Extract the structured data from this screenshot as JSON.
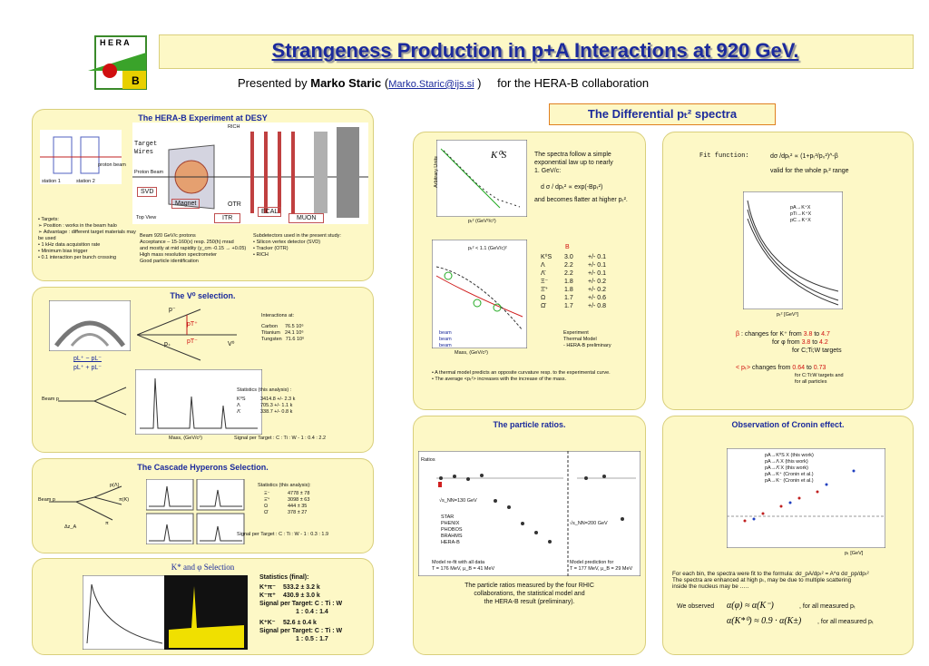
{
  "header": {
    "logo_top": "H E R A",
    "logo_bottom": "B",
    "title": "Strangeness Production in p+A Interactions at 920 GeV.",
    "presented_by": "Presented by",
    "author": "Marko Staric",
    "open_paren": "(",
    "email": "Marko.Staric@ijs.si",
    "close_paren": ")",
    "collaboration": "for the HERA-B collaboration"
  },
  "experiment": {
    "title": "The HERA-B Experiment at DESY",
    "labels": [
      "RICH",
      "Target Wires",
      "Proton Beam",
      "SVD",
      "Magnet",
      "OTR",
      "ECAL",
      "ITR",
      "MUON",
      "Top View"
    ],
    "station_labels": [
      "station 1",
      "station 2",
      "proton beam"
    ],
    "targets": [
      "• Targets:",
      "➢ Position : works in the beam halo",
      "➢ Advantage : different target materials may be used",
      "• 1 kHz data acquisition rate",
      "• Minimum bias trigger",
      "• 0.1 interaction per bunch crossing"
    ],
    "beam": [
      "Beam 920 GeV/c protons",
      "Acceptance – 15-160(x) resp. 250(h) mrad",
      "and mostly at mid rapidity (y_cm -0.15 → +0.05)",
      "High mass resolution spectrometer",
      "Good particle identification"
    ],
    "subdetectors": [
      "Subdetectors used in the present study:",
      "• Silicon vertex detector (SVD)",
      "• Tracker (OTR)",
      "• RICH"
    ]
  },
  "v0": {
    "title": "The V⁰ selection.",
    "diagram_labels": [
      "p⁻",
      "p₊",
      "pT⁺",
      "pT⁻",
      "V⁰"
    ],
    "formula_top": "pL⁺ − pL⁻",
    "formula_bottom": "pL⁺ + pL⁻",
    "beam_label": "Beam p",
    "interactions_title": "Interactions at:",
    "interactions": [
      [
        "Carbon",
        "76.5 10⁶"
      ],
      [
        "Titanium",
        "24.1 10⁶"
      ],
      [
        "Tungsten",
        "71.6 10⁶"
      ]
    ],
    "stats_title": "Statistics (this analysis) :",
    "stats": [
      [
        "K⁰S",
        "3414.8 +/- 2.3 k"
      ],
      [
        "Λ",
        "705.3 +/- 1.1 k"
      ],
      [
        "Λ̄",
        "338.7 +/- 0.8 k"
      ]
    ],
    "signal": "Signal per Target : C : Ti : W - 1 : 0.4 : 2.2",
    "mass_label": "Mass, (GeV/c²)"
  },
  "cascade": {
    "title": "The Cascade Hyperons Selection.",
    "diagram_labels": [
      "p(Λ)",
      "π(K)",
      "Beam p",
      "π",
      "Δz_A"
    ],
    "stats_title": "Statistics (this analysis):",
    "stats": [
      [
        "Ξ⁻",
        "4778 ± 78"
      ],
      [
        "Ξ̄⁺",
        "3098 ± 63"
      ],
      [
        "Ω",
        "444 ± 35"
      ],
      [
        "Ω̄",
        "378 ± 27"
      ]
    ],
    "signal": "Signal per Target : C : Ti : W - 1 : 0.3 : 1.9"
  },
  "kstar": {
    "title": "K* and φ Selection",
    "stats_title": "Statistics (final):",
    "stats": [
      [
        "K⁺π⁻",
        "533.2 ± 3.2 k"
      ],
      [
        "K⁻π⁺",
        "430.9 ± 3.0 k"
      ]
    ],
    "signal1": "Signal per Target: C : Ti : W",
    "ratio1": "1 : 0.4 : 1.4",
    "stats2": [
      [
        "K⁺K⁻",
        "52.6 ± 0.4 k"
      ]
    ],
    "signal2": "Signal per Target: C : Ti : W",
    "ratio2": "1 : 0.5 : 1.7"
  },
  "spectra": {
    "header": "The Differential pₜ² spectra",
    "plot_label": "K⁰S",
    "y_label": "Arbitrary Units",
    "x_label": "pₜ² (GeV²/c²)",
    "text": [
      "The spectra follow a simple",
      "exponential law up to nearly",
      "1. GeV/c:"
    ],
    "formula": "d σ / dpₜ² ∝ exp(-Bpₜ²)",
    "text2": "and becomes flatter at higher pₜ².",
    "plot2_note": "pₜ² < 1.1 (GeV/c)²",
    "plot2_x": "Mass, (GeV/c²)",
    "plot2_legend": [
      "beam",
      "beam",
      "beam"
    ],
    "b_header": "B",
    "b_table": [
      [
        "K⁰S",
        "3.0",
        "+/- 0.1"
      ],
      [
        "Λ",
        "2.2",
        "+/- 0.1"
      ],
      [
        "Λ̄",
        "2.2",
        "+/- 0.1"
      ],
      [
        "Ξ⁻",
        "1.8",
        "+/- 0.2"
      ],
      [
        "Ξ̄⁺",
        "1.8",
        "+/- 0.2"
      ],
      [
        "Ω",
        "1.7",
        "+/- 0.6"
      ],
      [
        "Ω̄",
        "1.7",
        "+/- 0.8"
      ]
    ],
    "legend": [
      "Experiment",
      "Thermal Model",
      "- HERA-B preliminary"
    ],
    "bullets": [
      "• A thermal model predicts an opposite curvature resp. to the experimental curve.",
      "• The average <pₜ²> increases with the increase of the mass."
    ]
  },
  "fit": {
    "fit_label": "Fit function:",
    "fit_formula": "dσ /dpₜ² ∝ (1+pₜ²/p₀²)^-β",
    "valid": "valid for the whole pₜ² range",
    "plot_legend": [
      "pA→K⁺X",
      "pTi→K⁺X",
      "pC→K⁺X"
    ],
    "x_label": "pₜ² [GeV²]",
    "beta_symbol": "β",
    "beta_lines": [
      ": changes for K⁺ from",
      "for φ from",
      "for C;Ti;W targets"
    ],
    "beta_from": [
      "3.8",
      "3.8"
    ],
    "beta_to": [
      "4.7",
      "4.2"
    ],
    "to": "to",
    "pt_symbol": "< pₜ>",
    "pt_line": "changes from",
    "pt_from": "0.64",
    "pt_to": "0.73",
    "pt_lines": [
      "for C:Ti:W targets and",
      "for all particles"
    ]
  },
  "ratios": {
    "title": "The particle ratios.",
    "y_label": "Ratios",
    "energy1": "√s_NN=130 GeV",
    "energy2": "√s_NN=200 GeV",
    "legend": [
      "STAR",
      "PHENIX",
      "PHOBOS",
      "BRAHMS",
      "HERA-B"
    ],
    "model1": "Model re-fit with all data",
    "model1b": "T = 176 MeV, μ_B = 41 MeV",
    "model2": "Model prediction for",
    "model2b": "T = 177 MeV, μ_B = 29 MeV",
    "caption": [
      "The particle ratios measured by the four RHIC",
      "collaborations, the statistical model and",
      "the HERA-B result (preliminary)."
    ]
  },
  "cronin": {
    "title": "Observation of Cronin effect.",
    "legend": [
      "pA→K⁰S X (this work)",
      "pA→Λ X (this work)",
      "pA→Λ̄ X (this work)",
      "pA→K⁺ (Cronin et al.)",
      "pA→K⁻ (Cronin et al.)"
    ],
    "x_label": "pₜ [GeV]",
    "text": [
      "For each bin, the spectra were fit to the formula: dσ_pA/dpₜ² = A^α dσ_pp/dpₜ²",
      "The spectra are enhanced at high pₜ, may be due to multiple scattering",
      "inside the nucleus may be ….."
    ],
    "observed": "We observed",
    "eq1": "α(φ) ≈ α(K⁻)",
    "eq1_note": ", for all measured pₜ",
    "eq2": "α(K*⁰) ≈ 0.9 · α(K±)",
    "eq2_note": ", for all measured pₜ"
  }
}
